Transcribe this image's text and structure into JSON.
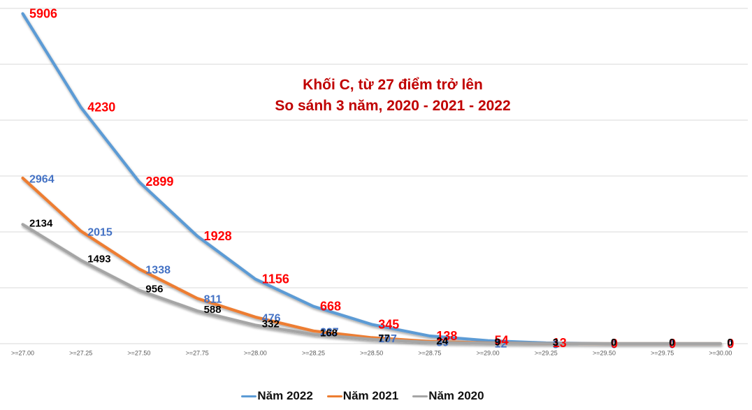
{
  "title": {
    "line1": "Khối C, từ 27 điểm trở lên",
    "line2": "So sánh 3 năm, 2020 - 2021 - 2022",
    "color": "#C00000"
  },
  "chart_data": {
    "type": "line",
    "categories": [
      ">=27.00",
      ">=27.25",
      ">=27.50",
      ">=27.75",
      ">=28.00",
      ">=28.25",
      ">=28.50",
      ">=28.75",
      ">=29.00",
      ">=29.25",
      ">=29.50",
      ">=29.75",
      ">=30.00"
    ],
    "series": [
      {
        "name": "Năm 2022",
        "line_color": "#5B9BD5",
        "label_color": "#FF0000",
        "values": [
          5906,
          4230,
          2899,
          1928,
          1156,
          668,
          345,
          138,
          54,
          13,
          0,
          0,
          0
        ]
      },
      {
        "name": "Năm 2021",
        "line_color": "#ED7D31",
        "label_color": "#4472C4",
        "values": [
          2964,
          2015,
          1338,
          811,
          476,
          227,
          107,
          39,
          12,
          3,
          0,
          0,
          0
        ]
      },
      {
        "name": "Năm 2020",
        "line_color": "#A5A5A5",
        "label_color": "#000000",
        "values": [
          2134,
          1493,
          956,
          588,
          332,
          168,
          77,
          24,
          9,
          3,
          0,
          0,
          0
        ]
      }
    ],
    "ylim": [
      0,
      6000
    ],
    "gridline_step": 1000,
    "grid": "horizontal-only",
    "gridline_color": "#D9D9D9",
    "axis_label_color": "#595959",
    "legend_position": "bottom",
    "data_label_position": "right"
  }
}
